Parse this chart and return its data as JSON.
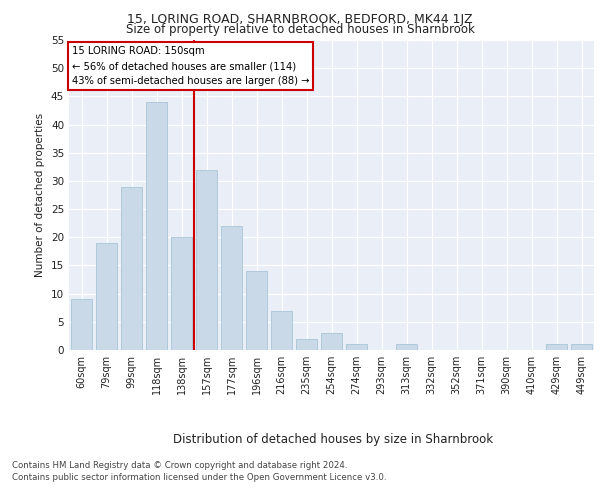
{
  "title": "15, LORING ROAD, SHARNBROOK, BEDFORD, MK44 1JZ",
  "subtitle": "Size of property relative to detached houses in Sharnbrook",
  "xlabel": "Distribution of detached houses by size in Sharnbrook",
  "ylabel": "Number of detached properties",
  "categories": [
    "60sqm",
    "79sqm",
    "99sqm",
    "118sqm",
    "138sqm",
    "157sqm",
    "177sqm",
    "196sqm",
    "216sqm",
    "235sqm",
    "254sqm",
    "274sqm",
    "293sqm",
    "313sqm",
    "332sqm",
    "352sqm",
    "371sqm",
    "390sqm",
    "410sqm",
    "429sqm",
    "449sqm"
  ],
  "values": [
    9,
    19,
    29,
    44,
    20,
    32,
    22,
    14,
    7,
    2,
    3,
    1,
    0,
    1,
    0,
    0,
    0,
    0,
    0,
    1,
    1
  ],
  "bar_color": "#c9d9e8",
  "bar_edgecolor": "#a8c4d8",
  "vline_x": 4.5,
  "vline_color": "#cc0000",
  "annotation_title": "15 LORING ROAD: 150sqm",
  "annotation_line1": "← 56% of detached houses are smaller (114)",
  "annotation_line2": "43% of semi-detached houses are larger (88) →",
  "annotation_box_color": "#ffffff",
  "annotation_box_edgecolor": "#cc0000",
  "footer_line1": "Contains HM Land Registry data © Crown copyright and database right 2024.",
  "footer_line2": "Contains public sector information licensed under the Open Government Licence v3.0.",
  "ylim": [
    0,
    55
  ],
  "yticks": [
    0,
    5,
    10,
    15,
    20,
    25,
    30,
    35,
    40,
    45,
    50,
    55
  ],
  "plot_bg_color": "#eaeff7",
  "fig_bg_color": "#ffffff"
}
